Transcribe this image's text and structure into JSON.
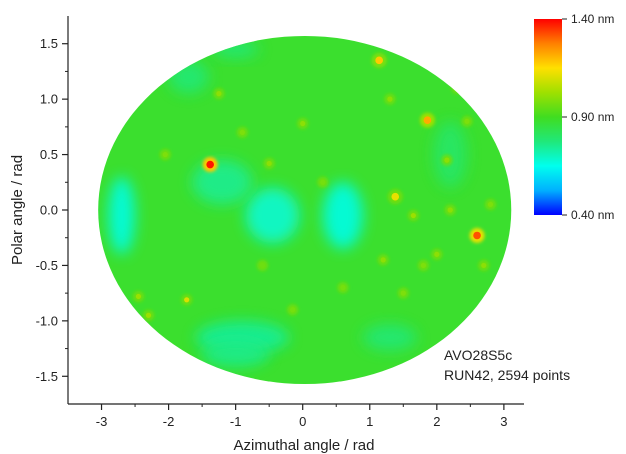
{
  "chart_data": {
    "type": "heatmap",
    "projection": "elliptical (Mollweide-like)",
    "xlabel": "Azimuthal angle / rad",
    "ylabel": "Polar angle / rad",
    "xlim": [
      -3.5,
      3.3
    ],
    "ylim": [
      -1.75,
      1.75
    ],
    "xticks": [
      -3,
      -2,
      -1,
      0,
      1,
      2,
      3
    ],
    "xtick_labels": [
      "-3",
      "-2",
      "-1",
      "0",
      "1",
      "2",
      "3"
    ],
    "yticks": [
      -1.5,
      -1.0,
      -0.5,
      0.0,
      0.5,
      1.0,
      1.5
    ],
    "ytick_labels": [
      "-1.5",
      "-1.0",
      "-0.5",
      "0.0",
      "0.5",
      "1.0",
      "1.5"
    ],
    "domain_ellipse": {
      "center_x": 0.03,
      "center_y": 0.0,
      "half_width_x": 3.08,
      "half_height_y": 1.57
    },
    "colorbar": {
      "min": 0.4,
      "max": 1.4,
      "tick_values": [
        1.4,
        0.9,
        0.4
      ],
      "tick_labels": [
        "1.40 nm",
        "0.90 nm",
        "0.40 nm"
      ],
      "colormap": [
        "#0000ff",
        "#00b0ff",
        "#00ffee",
        "#20e87a",
        "#40dd20",
        "#9fe000",
        "#ffe000",
        "#ff8000",
        "#ff0000"
      ]
    },
    "background_value": 0.88,
    "low_regions": [
      {
        "x": -2.7,
        "y": -0.05,
        "rx": 0.2,
        "ry": 0.35,
        "value": 0.66
      },
      {
        "x": -0.45,
        "y": -0.05,
        "rx": 0.4,
        "ry": 0.25,
        "value": 0.68
      },
      {
        "x": 0.6,
        "y": -0.05,
        "rx": 0.3,
        "ry": 0.3,
        "value": 0.66
      },
      {
        "x": -1.2,
        "y": 0.25,
        "rx": 0.45,
        "ry": 0.2,
        "value": 0.75
      },
      {
        "x": -0.9,
        "y": -1.15,
        "rx": 0.7,
        "ry": 0.15,
        "value": 0.74
      },
      {
        "x": -1.0,
        "y": -1.3,
        "rx": 0.5,
        "ry": 0.12,
        "value": 0.76
      },
      {
        "x": 1.3,
        "y": -1.15,
        "rx": 0.4,
        "ry": 0.12,
        "value": 0.78
      },
      {
        "x": -1.7,
        "y": 1.2,
        "rx": 0.3,
        "ry": 0.15,
        "value": 0.78
      },
      {
        "x": -1.0,
        "y": 1.45,
        "rx": 0.35,
        "ry": 0.08,
        "value": 0.78
      },
      {
        "x": 2.2,
        "y": 0.5,
        "rx": 0.25,
        "ry": 0.3,
        "value": 0.8
      }
    ],
    "high_spots": [
      {
        "x": -1.38,
        "y": 0.41,
        "value": 1.38
      },
      {
        "x": 2.6,
        "y": -0.23,
        "value": 1.32
      },
      {
        "x": 1.86,
        "y": 0.81,
        "value": 1.22
      },
      {
        "x": 1.14,
        "y": 1.35,
        "value": 1.18
      },
      {
        "x": 1.38,
        "y": 0.12,
        "value": 1.12
      },
      {
        "x": -1.73,
        "y": -0.81,
        "value": 1.1
      },
      {
        "x": -2.45,
        "y": -0.78,
        "value": 1.02
      },
      {
        "x": -2.3,
        "y": -0.95,
        "value": 1.02
      },
      {
        "x": 2.7,
        "y": -0.5,
        "value": 1.0
      },
      {
        "x": 2.15,
        "y": 0.45,
        "value": 1.0
      },
      {
        "x": -0.5,
        "y": 0.42,
        "value": 1.0
      },
      {
        "x": 1.65,
        "y": -0.05,
        "value": 1.02
      },
      {
        "x": -1.25,
        "y": 1.05,
        "value": 1.0
      },
      {
        "x": 0.0,
        "y": 0.78,
        "value": 1.0
      },
      {
        "x": 1.3,
        "y": 1.0,
        "value": 1.0
      },
      {
        "x": 2.2,
        "y": 0.0,
        "value": 1.0
      },
      {
        "x": 2.0,
        "y": -0.4,
        "value": 1.0
      },
      {
        "x": 1.2,
        "y": -0.45,
        "value": 1.0
      },
      {
        "x": -0.9,
        "y": 0.7,
        "value": 0.98
      },
      {
        "x": -2.05,
        "y": 0.5,
        "value": 0.98
      },
      {
        "x": 2.45,
        "y": 0.8,
        "value": 0.98
      },
      {
        "x": 0.6,
        "y": -0.7,
        "value": 0.97
      },
      {
        "x": 1.5,
        "y": -0.75,
        "value": 0.98
      },
      {
        "x": 2.3,
        "y": 1.1,
        "value": 0.98
      },
      {
        "x": -0.15,
        "y": -0.9,
        "value": 0.97
      },
      {
        "x": 0.3,
        "y": 0.25,
        "value": 0.97
      },
      {
        "x": 2.8,
        "y": 0.05,
        "value": 0.98
      },
      {
        "x": 1.8,
        "y": -0.5,
        "value": 0.98
      },
      {
        "x": -0.6,
        "y": -0.5,
        "value": 0.96
      },
      {
        "x": 2.5,
        "y": -1.05,
        "value": 0.97
      }
    ],
    "annotations": [
      "AVO28S5c",
      "RUN42, 2594 points"
    ]
  }
}
